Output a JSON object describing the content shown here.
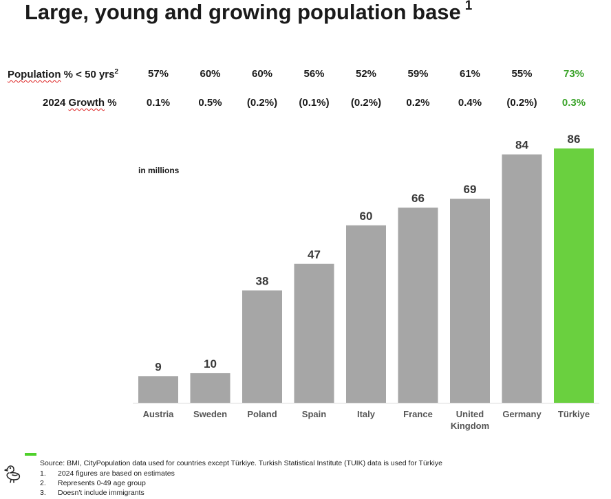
{
  "title": "Large, young and growing population base",
  "title_superscript": "1",
  "rows": {
    "population": {
      "label": "Population",
      "label_rest": " % < 50 yrs",
      "label_sup": "2",
      "values": [
        "57%",
        "60%",
        "60%",
        "56%",
        "52%",
        "59%",
        "61%",
        "55%",
        "73%"
      ]
    },
    "growth": {
      "label_pre": "2024 ",
      "label_word": "Growth",
      "label_rest": " %",
      "values": [
        "0.1%",
        "0.5%",
        "(0.2%)",
        "(0.1%)",
        "(0.2%)",
        "0.2%",
        "0.4%",
        "(0.2%)",
        "0.3%"
      ]
    }
  },
  "unit_label": "in millions",
  "colors": {
    "bar": "#a6a6a6",
    "highlight": "#6ad03f",
    "highlight_text": "#3aa329",
    "legend": "#4fd12b"
  },
  "chart_data": {
    "type": "bar",
    "title": "Large, young and growing population base",
    "ylabel": "in millions",
    "xlabel": "",
    "ylim": [
      0,
      86
    ],
    "categories": [
      [
        "Austria"
      ],
      [
        "Sweden"
      ],
      [
        "Poland"
      ],
      [
        "Spain"
      ],
      [
        "Italy"
      ],
      [
        "France"
      ],
      [
        "United",
        "Kingdom"
      ],
      [
        "Germany"
      ],
      [
        "Türkiye"
      ]
    ],
    "values": [
      9,
      10,
      38,
      47,
      60,
      66,
      69,
      84,
      86
    ],
    "highlight_index": 8
  },
  "footnotes": {
    "source": "Source: BMI, CityPopulation data used for countries except Türkiye. Turkish Statistical Institute (TUIK) data is used for Türkiye",
    "items": [
      {
        "num": "1.",
        "text": "2024 figures are based on estimates"
      },
      {
        "num": "2.",
        "text": "Represents 0-49 age group"
      },
      {
        "num": "3.",
        "text": "Doesn't include immigrants"
      }
    ]
  },
  "logo_icon": "bird-logo-icon"
}
